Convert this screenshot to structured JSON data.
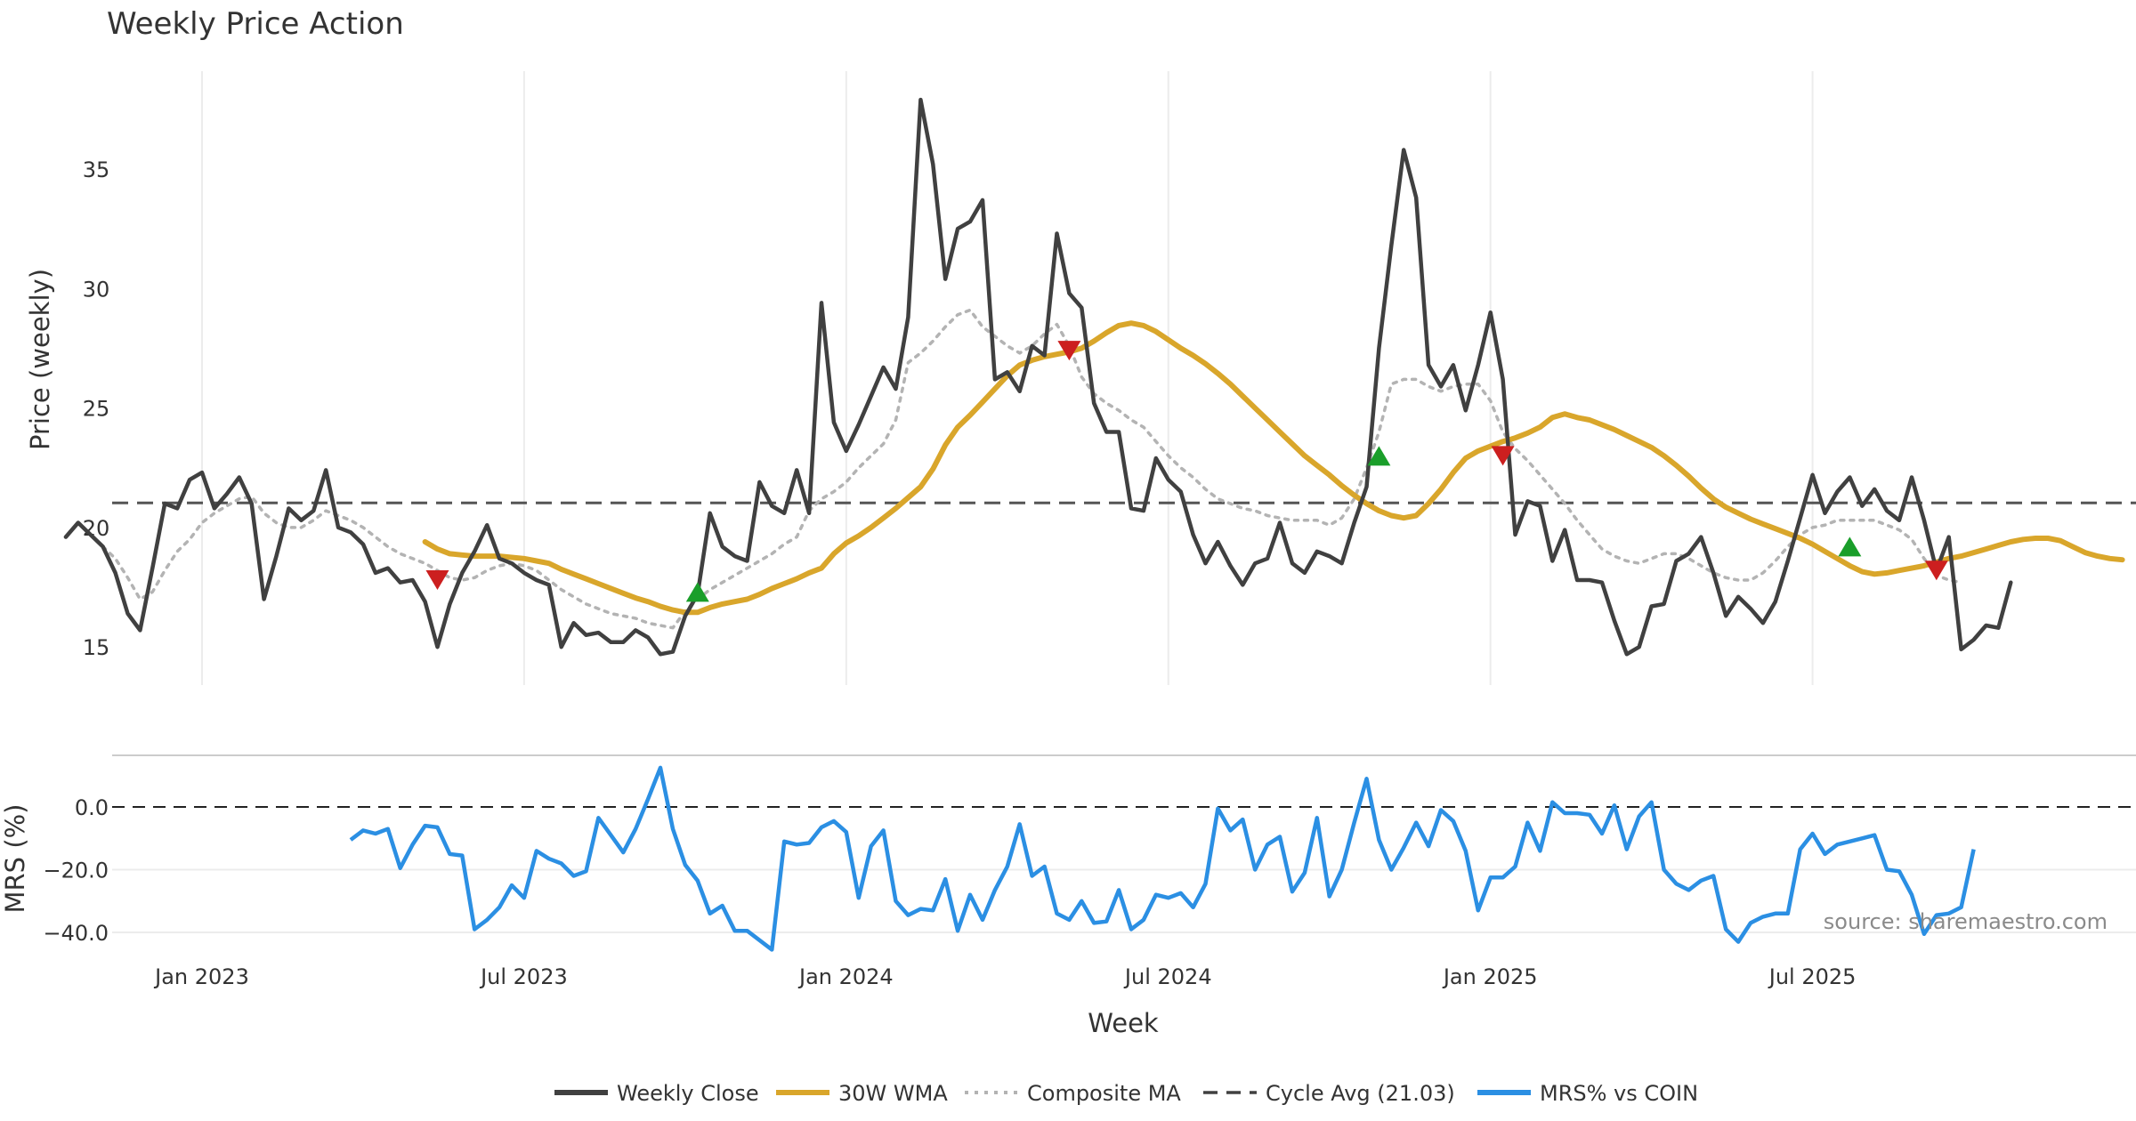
{
  "chart_data": [
    {
      "type": "line",
      "title": "Weekly Price Action",
      "xlabel": "Week",
      "ylabel": "Price (weekly)",
      "ylim": [
        13.5,
        39.5
      ],
      "yticks": [
        15,
        20,
        25,
        30,
        35
      ],
      "x_tick_labels": [
        "Jan 2023",
        "Jul 2023",
        "Jan 2024",
        "Jul 2024",
        "Jan 2025",
        "Jul 2025"
      ],
      "x_tick_positions": [
        11,
        37,
        63,
        89,
        115,
        141
      ],
      "x_range": [
        -5,
        160
      ],
      "cycle_avg": 21.03,
      "series": [
        {
          "name": "Weekly Close",
          "color": "#404040",
          "start": 0,
          "values": [
            19.6,
            20.2,
            19.7,
            19.2,
            18.1,
            16.4,
            15.7,
            18.3,
            21.0,
            20.8,
            22.0,
            22.3,
            20.8,
            21.4,
            22.1,
            21.0,
            17.0,
            18.8,
            20.8,
            20.3,
            20.7,
            22.4,
            20.0,
            19.8,
            19.3,
            18.1,
            18.3,
            17.7,
            17.8,
            16.9,
            15.0,
            16.8,
            18.1,
            19.0,
            20.1,
            18.7,
            18.5,
            18.1,
            17.8,
            17.6,
            15.0,
            16.0,
            15.5,
            15.6,
            15.2,
            15.2,
            15.7,
            15.4,
            14.7,
            14.8,
            16.3,
            17.2,
            20.6,
            19.2,
            18.8,
            18.6,
            21.9,
            20.9,
            20.6,
            22.4,
            20.6,
            29.4,
            24.4,
            23.2,
            24.3,
            25.5,
            26.7,
            25.8,
            28.8,
            37.9,
            35.2,
            30.4,
            32.5,
            32.8,
            33.7,
            26.2,
            26.5,
            25.7,
            27.6,
            27.2,
            32.3,
            29.8,
            29.2,
            25.2,
            24.0,
            24.0,
            20.8,
            20.7,
            22.9,
            22.0,
            21.5,
            19.7,
            18.5,
            19.4,
            18.4,
            17.6,
            18.5,
            18.7,
            20.2,
            18.5,
            18.1,
            19.0,
            18.8,
            18.5,
            20.2,
            21.7,
            27.5,
            31.8,
            35.8,
            33.8,
            26.8,
            25.9,
            26.8,
            24.9,
            26.8,
            29.0,
            26.2,
            19.7,
            21.1,
            20.9,
            18.6,
            19.9,
            17.8,
            17.8,
            17.7,
            16.1,
            14.7,
            15.0,
            16.7,
            16.8,
            18.6,
            18.9,
            19.6,
            18.1,
            16.3,
            17.1,
            16.6,
            16.0,
            16.9,
            18.6,
            20.4,
            22.2,
            20.6,
            21.5,
            22.1,
            20.9,
            21.6,
            20.7,
            20.3,
            22.1,
            20.3,
            18.2,
            19.6,
            14.9,
            15.3,
            15.9,
            15.8,
            17.7
          ]
        },
        {
          "name": "30W WMA",
          "color": "#d9a62b",
          "start": 29,
          "values": [
            19.4,
            19.1,
            18.9,
            18.85,
            18.8,
            18.8,
            18.8,
            18.75,
            18.7,
            18.6,
            18.5,
            18.25,
            18.05,
            17.85,
            17.65,
            17.45,
            17.25,
            17.05,
            16.9,
            16.7,
            16.55,
            16.45,
            16.45,
            16.65,
            16.8,
            16.9,
            17.0,
            17.2,
            17.45,
            17.65,
            17.85,
            18.1,
            18.3,
            18.9,
            19.35,
            19.65,
            20.0,
            20.4,
            20.8,
            21.25,
            21.7,
            22.45,
            23.45,
            24.2,
            24.7,
            25.25,
            25.8,
            26.35,
            26.8,
            27.0,
            27.15,
            27.25,
            27.35,
            27.5,
            27.8,
            28.15,
            28.45,
            28.55,
            28.45,
            28.2,
            27.85,
            27.5,
            27.2,
            26.85,
            26.45,
            26.0,
            25.5,
            25.0,
            24.5,
            24.0,
            23.5,
            23.0,
            22.6,
            22.2,
            21.75,
            21.35,
            21.0,
            20.7,
            20.5,
            20.4,
            20.5,
            21.0,
            21.6,
            22.3,
            22.9,
            23.2,
            23.4,
            23.6,
            23.75,
            23.95,
            24.2,
            24.6,
            24.75,
            24.6,
            24.5,
            24.3,
            24.1,
            23.85,
            23.6,
            23.35,
            23.0,
            22.6,
            22.15,
            21.65,
            21.2,
            20.85,
            20.6,
            20.35,
            20.15,
            19.95,
            19.75,
            19.55,
            19.3,
            19.0,
            18.7,
            18.4,
            18.15,
            18.05,
            18.1,
            18.2,
            18.3,
            18.4,
            18.55,
            18.7,
            18.8,
            18.95,
            19.1,
            19.25,
            19.4,
            19.5,
            19.55,
            19.55,
            19.45,
            19.2,
            18.95,
            18.8,
            18.7,
            18.65
          ]
        },
        {
          "name": "Composite MA",
          "color": "#b3b3b3",
          "start": 3,
          "values": [
            19.2,
            18.7,
            17.9,
            17.0,
            17.3,
            18.2,
            19.0,
            19.5,
            20.2,
            20.6,
            20.9,
            21.2,
            21.3,
            20.6,
            20.2,
            20.0,
            20.0,
            20.3,
            20.7,
            20.5,
            20.3,
            20.0,
            19.6,
            19.2,
            18.9,
            18.7,
            18.5,
            18.2,
            17.9,
            17.8,
            17.9,
            18.2,
            18.4,
            18.5,
            18.4,
            18.2,
            17.8,
            17.4,
            17.1,
            16.8,
            16.6,
            16.4,
            16.3,
            16.2,
            16.0,
            15.9,
            15.8,
            16.5,
            17.0,
            17.4,
            17.7,
            18.0,
            18.3,
            18.6,
            18.9,
            19.3,
            19.6,
            20.7,
            21.2,
            21.5,
            21.9,
            22.5,
            23.0,
            23.5,
            24.5,
            26.9,
            27.3,
            27.8,
            28.4,
            28.9,
            29.1,
            28.4,
            28.0,
            27.6,
            27.3,
            27.6,
            28.1,
            28.5,
            27.6,
            26.3,
            25.6,
            25.2,
            24.9,
            24.5,
            24.2,
            23.6,
            23.0,
            22.5,
            22.1,
            21.6,
            21.2,
            21.0,
            20.8,
            20.7,
            20.5,
            20.4,
            20.3,
            20.3,
            20.3,
            20.1,
            20.4,
            21.2,
            22.5,
            24.0,
            26.0,
            26.2,
            26.2,
            25.9,
            25.7,
            25.9,
            26.0,
            26.0,
            25.3,
            24.0,
            23.3,
            22.8,
            22.2,
            21.6,
            21.0,
            20.3,
            19.7,
            19.1,
            18.8,
            18.6,
            18.5,
            18.7,
            18.9,
            18.9,
            18.7,
            18.4,
            18.1,
            17.9,
            17.8,
            17.8,
            18.1,
            18.6,
            19.2,
            19.7,
            20.0,
            20.1,
            20.3,
            20.3,
            20.3,
            20.3,
            20.1,
            19.9,
            19.5,
            18.7,
            18.0,
            17.8,
            17.7
          ]
        }
      ],
      "signals": {
        "up": [
          {
            "x": 51,
            "y": 17.3
          },
          {
            "x": 106,
            "y": 23.0
          },
          {
            "x": 144,
            "y": 19.2
          }
        ],
        "down": [
          {
            "x": 30,
            "y": 17.8
          },
          {
            "x": 81,
            "y": 27.4
          },
          {
            "x": 116,
            "y": 23.0
          },
          {
            "x": 151,
            "y": 18.2
          }
        ]
      }
    },
    {
      "type": "line",
      "ylabel": "MRS (%)",
      "ylim": [
        -49,
        13.5
      ],
      "yticks": [
        0.0,
        -20.0,
        -40.0
      ],
      "ytick_labels": [
        "0.0",
        "−20.0",
        "−40.0"
      ],
      "zero_line": 0,
      "series": [
        {
          "name": "MRS% vs COIN",
          "color": "#2b8fe3",
          "start": 23,
          "values": [
            -10.5,
            -7.5,
            -8.5,
            -7.0,
            -19.5,
            -12.0,
            -6.0,
            -6.5,
            -15.0,
            -15.5,
            -39.0,
            -36.0,
            -32.0,
            -25.0,
            -29.0,
            -14.0,
            -16.5,
            -18.0,
            -22.0,
            -20.5,
            -3.5,
            -9.0,
            -14.5,
            -7.0,
            2.5,
            12.5,
            -7.0,
            -18.5,
            -23.5,
            -34.0,
            -31.5,
            -39.5,
            -39.5,
            -42.5,
            -45.5,
            -11.0,
            -12.0,
            -11.5,
            -6.5,
            -4.5,
            -8.0,
            -29.0,
            -12.5,
            -7.5,
            -30.0,
            -34.5,
            -32.5,
            -33.0,
            -23.0,
            -39.5,
            -28.0,
            -36.0,
            -26.5,
            -19.0,
            -5.5,
            -22.0,
            -19.0,
            -34.0,
            -36.0,
            -30.0,
            -37.0,
            -36.5,
            -26.5,
            -39.0,
            -36.0,
            -28.0,
            -29.0,
            -27.5,
            -32.0,
            -24.5,
            -0.5,
            -7.5,
            -4.0,
            -20.0,
            -12.0,
            -9.5,
            -27.0,
            -21.0,
            -3.5,
            -28.5,
            -20.0,
            -5.0,
            9.0,
            -10.5,
            -20.0,
            -13.0,
            -5.0,
            -12.5,
            -1.0,
            -4.5,
            -14.0,
            -33.0,
            -22.5,
            -22.5,
            -19.0,
            -5.0,
            -14.0,
            1.5,
            -2.0,
            -2.0,
            -2.5,
            -8.5,
            0.5,
            -13.5,
            -3.0,
            1.5,
            -20.0,
            -24.5,
            -26.5,
            -23.5,
            -22.0,
            -39.0,
            -43.0,
            -37.0,
            -35.0,
            -34.0,
            -34.0,
            -13.5,
            -8.5,
            -15.0,
            -12.0,
            -11.0,
            -10.0,
            -9.0,
            -20.0,
            -20.5,
            -28.0,
            -40.5,
            -34.5,
            -34.0,
            -32.0,
            -13.5
          ]
        }
      ]
    }
  ],
  "legend": [
    {
      "label": "Weekly Close",
      "style": "solid",
      "color": "#404040"
    },
    {
      "label": "30W WMA",
      "style": "solid",
      "color": "#d9a62b"
    },
    {
      "label": "Composite MA",
      "style": "dotted",
      "color": "#b3b3b3"
    },
    {
      "label": "Cycle Avg (21.03)",
      "style": "dashed",
      "color": "#404040"
    },
    {
      "label": "MRS% vs COIN",
      "style": "solid",
      "color": "#2b8fe3"
    }
  ],
  "source": "source: sharemaestro.com",
  "colors": {
    "up": "#1a9e2a",
    "down": "#cc1f1f",
    "grid": "#ececec",
    "refline": "#555555"
  }
}
